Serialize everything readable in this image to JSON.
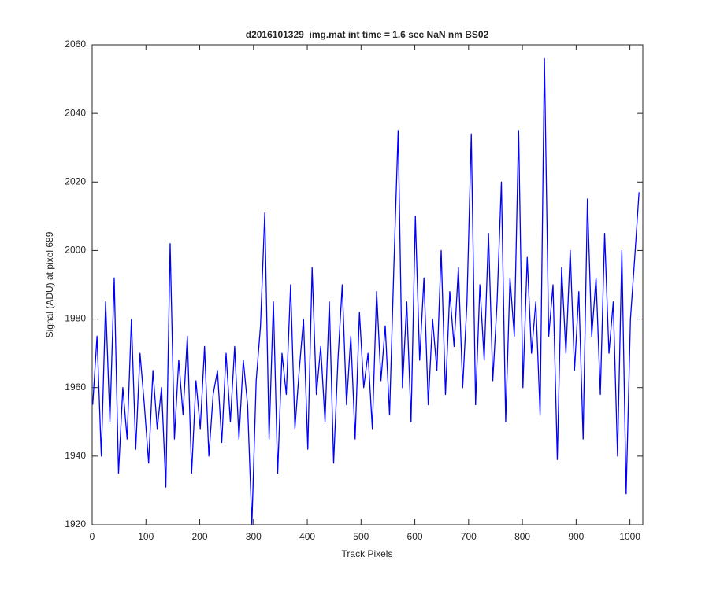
{
  "chart_data": {
    "type": "line",
    "title": "d2016101329_img.mat int time = 1.6 sec  NaN nm BS02",
    "x_label": "Track Pixels",
    "y_label": "Signal (ADU) at pixel 689",
    "color": "#0000ff",
    "xlim": [
      0,
      1024
    ],
    "ylim": [
      1920,
      2060
    ],
    "xticks": [
      0,
      100,
      200,
      300,
      400,
      500,
      600,
      700,
      800,
      900,
      1000
    ],
    "yticks": [
      1920,
      1940,
      1960,
      1980,
      2000,
      2020,
      2040,
      2060
    ],
    "grid": false,
    "x": [
      1,
      9,
      17,
      25,
      33,
      41,
      49,
      57,
      65,
      73,
      81,
      89,
      97,
      105,
      113,
      121,
      129,
      137,
      145,
      153,
      161,
      169,
      177,
      185,
      193,
      201,
      209,
      217,
      225,
      233,
      241,
      249,
      257,
      265,
      273,
      281,
      289,
      297,
      305,
      313,
      321,
      329,
      337,
      345,
      353,
      361,
      369,
      377,
      385,
      393,
      401,
      409,
      417,
      425,
      433,
      441,
      449,
      457,
      465,
      473,
      481,
      489,
      497,
      505,
      513,
      521,
      529,
      537,
      545,
      553,
      561,
      569,
      577,
      585,
      593,
      601,
      609,
      617,
      625,
      633,
      641,
      649,
      657,
      665,
      673,
      681,
      689,
      697,
      705,
      713,
      721,
      729,
      737,
      745,
      753,
      761,
      769,
      777,
      785,
      793,
      801,
      809,
      817,
      825,
      833,
      841,
      849,
      857,
      865,
      873,
      881,
      889,
      897,
      905,
      913,
      921,
      929,
      937,
      945,
      953,
      961,
      969,
      977,
      985,
      993,
      1001,
      1009,
      1017
    ],
    "values": [
      1955,
      1975,
      1940,
      1985,
      1950,
      1992,
      1935,
      1960,
      1945,
      1980,
      1942,
      1970,
      1955,
      1938,
      1965,
      1948,
      1960,
      1931,
      2002,
      1945,
      1968,
      1952,
      1975,
      1935,
      1962,
      1948,
      1972,
      1940,
      1958,
      1965,
      1944,
      1970,
      1950,
      1972,
      1945,
      1968,
      1955,
      1920,
      1962,
      1978,
      2011,
      1945,
      1985,
      1935,
      1970,
      1958,
      1990,
      1948,
      1965,
      1980,
      1942,
      1995,
      1958,
      1972,
      1950,
      1985,
      1938,
      1968,
      1990,
      1955,
      1975,
      1945,
      1982,
      1960,
      1970,
      1948,
      1988,
      1962,
      1978,
      1952,
      1995,
      2035,
      1960,
      1985,
      1950,
      2010,
      1968,
      1992,
      1955,
      1980,
      1965,
      2000,
      1958,
      1988,
      1972,
      1995,
      1960,
      1985,
      2034,
      1955,
      1990,
      1968,
      2005,
      1962,
      1985,
      2020,
      1950,
      1992,
      1975,
      2035,
      1960,
      1998,
      1970,
      1985,
      1952,
      2056,
      1975,
      1990,
      1939,
      1995,
      1970,
      2000,
      1965,
      1988,
      1945,
      2015,
      1975,
      1992,
      1958,
      2005,
      1970,
      1985,
      1940,
      2000,
      1929,
      1980,
      1998,
      2017
    ]
  }
}
